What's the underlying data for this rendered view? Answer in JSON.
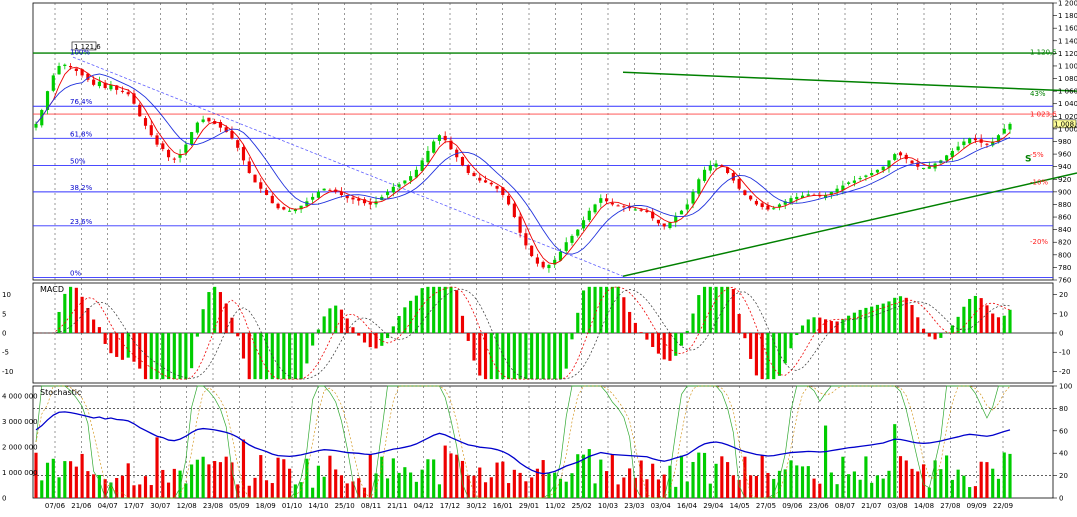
{
  "chart_data": [
    {
      "type": "candlestick",
      "panel": "price",
      "y_ticks": [
        "1 200",
        "1 180",
        "1 160",
        "1 140",
        "1 120",
        "1 100",
        "1 080",
        "1 060",
        "1 040",
        "1 020",
        "1 000",
        "980",
        "960",
        "940",
        "920",
        "900",
        "880",
        "860",
        "840",
        "820",
        "800",
        "780",
        "760"
      ],
      "ylim": [
        760,
        1200
      ],
      "x_tick_labels": [
        "07/06",
        "21/06",
        "04/07",
        "17/07",
        "30/07",
        "12/08",
        "23/08",
        "05/09",
        "18/09",
        "01/10",
        "14/10",
        "25/10",
        "08/11",
        "21/11",
        "04/12",
        "17/12",
        "30/12",
        "16/01",
        "29/01",
        "11/02",
        "25/02",
        "10/03",
        "23/03",
        "03/04",
        "16/04",
        "29/04",
        "14/05",
        "27/05",
        "09/06",
        "23/06",
        "08/07",
        "21/07",
        "03/08",
        "14/08",
        "27/08",
        "09/09",
        "22/09"
      ],
      "annotations": {
        "peak_box": "1 121,6",
        "peak_label": "100%",
        "level_1023": "1 023,6",
        "current_price": "1 008,0",
        "level_1120": "1 120,5",
        "right_labels": [
          "1 120,5",
          "43%",
          "1 023,6",
          "-5%",
          "S",
          "-10%",
          "-20%"
        ]
      },
      "horizontal_lines": [
        {
          "value": 1120.5,
          "color": "#008000"
        },
        {
          "value": 1023.6,
          "color": "#ff4040"
        },
        {
          "value": 1036,
          "color": "#3030ff"
        },
        {
          "value": 985,
          "color": "#3030ff"
        },
        {
          "value": 942,
          "color": "#3030ff"
        },
        {
          "value": 900,
          "color": "#3030ff"
        },
        {
          "value": 846,
          "color": "#3030ff"
        },
        {
          "value": 764,
          "color": "#3030ff"
        }
      ],
      "fib_labels": [
        "76,4%",
        "61,8%",
        "50%",
        "38,2%",
        "23,6%",
        "0%"
      ],
      "fib_values": [
        1036,
        985,
        942,
        900,
        846,
        764
      ],
      "channel": {
        "upper": [
          [
            623,
            1090
          ],
          [
            1077,
            1060
          ]
        ],
        "lower": [
          [
            623,
            766
          ],
          [
            1077,
            930
          ]
        ],
        "color": "#008000"
      },
      "downtrend_line": {
        "from": [
          73,
          1114
        ],
        "to": [
          623,
          766
        ],
        "color": "#6060ff"
      },
      "closes": [
        1008,
        1030,
        1060,
        1085,
        1100,
        1102,
        1098,
        1092,
        1085,
        1078,
        1070,
        1075,
        1065,
        1070,
        1062,
        1060,
        1055,
        1040,
        1020,
        1005,
        990,
        975,
        968,
        955,
        952,
        960,
        975,
        995,
        1010,
        1015,
        1012,
        1008,
        1002,
        995,
        985,
        970,
        950,
        930,
        915,
        905,
        895,
        882,
        874,
        872,
        870,
        873,
        878,
        885,
        892,
        900,
        905,
        903,
        900,
        895,
        890,
        888,
        886,
        882,
        880,
        885,
        892,
        900,
        908,
        912,
        918,
        925,
        935,
        950,
        965,
        980,
        990,
        982,
        968,
        955,
        942,
        930,
        925,
        918,
        915,
        912,
        905,
        895,
        880,
        860,
        835,
        815,
        798,
        786,
        780,
        784,
        792,
        805,
        820,
        830,
        840,
        855,
        870,
        880,
        890,
        885,
        880,
        878,
        876,
        874,
        872,
        870,
        868,
        858,
        850,
        845,
        852,
        862,
        870,
        880,
        900,
        920,
        935,
        942,
        945,
        940,
        930,
        918,
        905,
        895,
        888,
        880,
        876,
        872,
        874,
        880,
        885,
        890,
        892,
        894,
        896,
        895,
        893,
        895,
        900,
        905,
        910,
        915,
        918,
        922,
        926,
        930,
        935,
        940,
        950,
        960,
        958,
        952,
        945,
        940,
        938,
        940,
        945,
        950,
        958,
        965,
        972,
        980,
        985,
        982,
        978,
        975,
        980,
        990,
        1000,
        1008
      ]
    },
    {
      "type": "histogram+line",
      "panel": "macd",
      "title": "MACD",
      "y_ticks_left": [
        "10",
        "5",
        "0",
        "-5",
        "-10"
      ],
      "y_ticks_right": [
        "20",
        "10",
        "0",
        "-10",
        "-20"
      ],
      "ylim": [
        -13,
        13
      ]
    },
    {
      "type": "volume+line",
      "panel": "stochastic",
      "title": "Stochastic",
      "y_ticks_left": [
        "4 000 000",
        "3 000 000",
        "2 000 000",
        "1 000 000",
        "0"
      ],
      "y_ticks_right": [
        "100",
        "80",
        "60",
        "40",
        "20",
        "0"
      ],
      "ylim_volume": [
        0,
        4400000
      ],
      "ylim_oscillator": [
        0,
        100
      ]
    }
  ]
}
